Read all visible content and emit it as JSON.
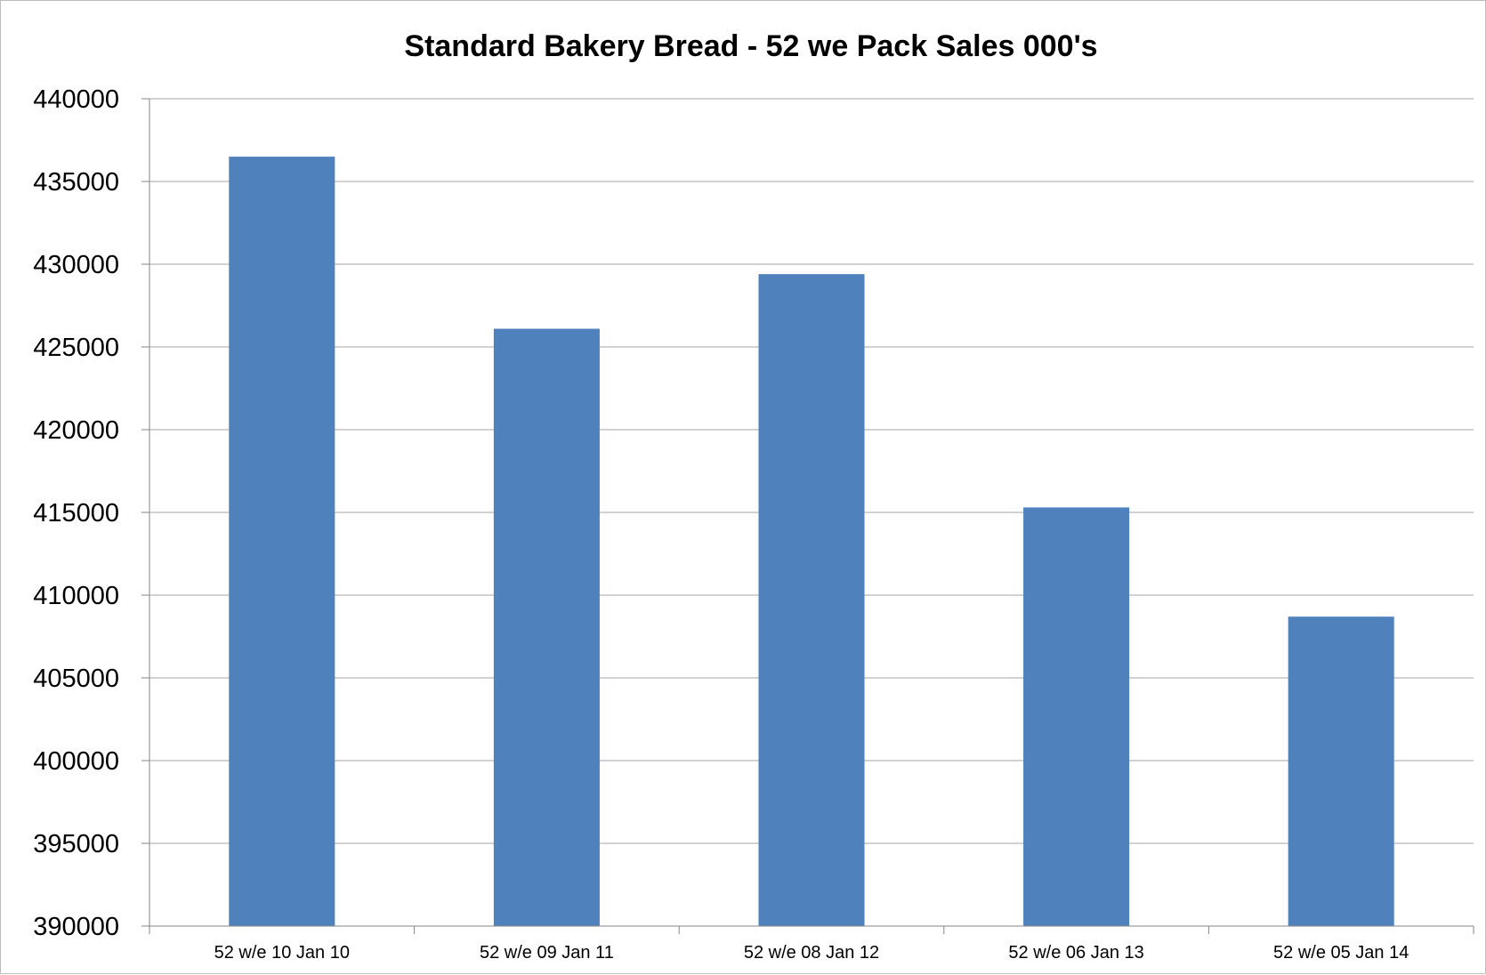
{
  "chart_data": {
    "type": "bar",
    "title": "Standard Bakery Bread - 52 we Pack Sales 000's",
    "xlabel": "",
    "ylabel": "",
    "categories": [
      "52 w/e 10 Jan 10",
      "52 w/e 09 Jan 11",
      "52 w/e 08 Jan 12",
      "52 w/e 06 Jan 13",
      "52 w/e 05 Jan 14"
    ],
    "values": [
      436500,
      426100,
      429400,
      415300,
      408700
    ],
    "ylim": [
      390000,
      440000
    ],
    "yticks": [
      "390000",
      "395000",
      "400000",
      "405000",
      "410000",
      "415000",
      "420000",
      "425000",
      "430000",
      "435000",
      "440000"
    ],
    "grid": "horizontal",
    "legend": "none",
    "bar_color": "#4f81bd"
  }
}
